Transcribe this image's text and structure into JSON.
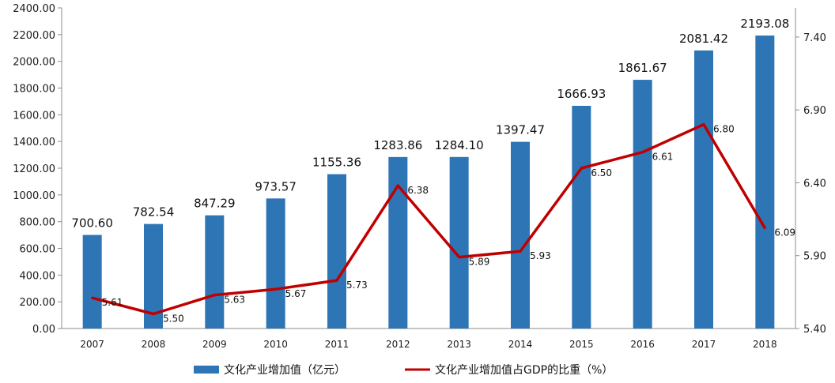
{
  "chart_data": {
    "type": "bar",
    "title": "",
    "categories": [
      "2007",
      "2008",
      "2009",
      "2010",
      "2011",
      "2012",
      "2013",
      "2014",
      "2015",
      "2016",
      "2017",
      "2018"
    ],
    "series": [
      {
        "name": "文化产业增加值（亿元）",
        "type": "bar",
        "axis": "left",
        "color": "#2e75b6",
        "values": [
          700.6,
          782.54,
          847.29,
          973.57,
          1155.36,
          1283.86,
          1284.1,
          1397.47,
          1666.93,
          1861.67,
          2081.42,
          2193.08
        ],
        "labels": [
          "700.60",
          "782.54",
          "847.29",
          "973.57",
          "1155.36",
          "1283.86",
          "1284.10",
          "1397.47",
          "1666.93",
          "1861.67",
          "2081.42",
          "2193.08"
        ]
      },
      {
        "name": "文化产业增加值占GDP的比重（%）",
        "type": "line",
        "axis": "right",
        "color": "#c00000",
        "values": [
          5.61,
          5.5,
          5.63,
          5.67,
          5.73,
          6.38,
          5.89,
          5.93,
          6.5,
          6.61,
          6.8,
          6.09
        ],
        "labels": [
          "5.61",
          "5.50",
          "5.63",
          "5.67",
          "5.73",
          "6.38",
          "5.89",
          "5.93",
          "6.50",
          "6.61",
          "6.80",
          "6.09"
        ]
      }
    ],
    "y_left": {
      "ylim": [
        0,
        2400
      ],
      "ticks": [
        "0.00",
        "200.00",
        "400.00",
        "600.00",
        "800.00",
        "1000.00",
        "1200.00",
        "1400.00",
        "1600.00",
        "1800.00",
        "2000.00",
        "2200.00",
        "2400.00"
      ]
    },
    "y_right": {
      "ylim": [
        5.4,
        7.6
      ],
      "ticks": [
        "5.40",
        "5.90",
        "6.40",
        "6.90",
        "7.40"
      ]
    },
    "grid": false,
    "legend": "bottom-center"
  }
}
